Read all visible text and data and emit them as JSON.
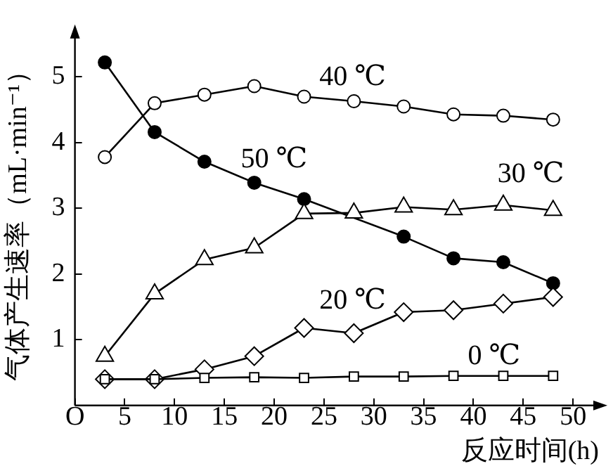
{
  "chart_data": {
    "type": "line",
    "xlabel": "反应时间(h)",
    "ylabel": "气体产生速率（mL·min⁻¹）",
    "x": [
      3,
      8,
      13,
      18,
      23,
      28,
      33,
      38,
      43,
      48
    ],
    "series": [
      {
        "name": "40 ℃",
        "color": "#000000",
        "marker": "circle",
        "values": [
          3.78,
          4.6,
          4.73,
          4.86,
          4.7,
          4.63,
          4.55,
          4.43,
          4.41,
          4.35
        ]
      },
      {
        "name": "50 ℃",
        "color": "#000000",
        "marker": "circle",
        "values": [
          5.22,
          4.16,
          3.71,
          3.39,
          3.14,
          null,
          2.57,
          2.24,
          2.18,
          1.86
        ]
      },
      {
        "name": "30 ℃",
        "color": "#000000",
        "marker": "triangle",
        "values": [
          0.75,
          1.7,
          2.22,
          2.4,
          2.92,
          2.93,
          3.02,
          2.98,
          3.05,
          2.97
        ]
      },
      {
        "name": "20 ℃",
        "color": "#000000",
        "marker": "diamond",
        "values": [
          0.4,
          0.4,
          0.55,
          0.75,
          1.18,
          1.1,
          1.42,
          1.45,
          1.55,
          1.65
        ]
      },
      {
        "name": "0 ℃",
        "color": "#000000",
        "marker": "square",
        "values": [
          0.4,
          0.4,
          0.42,
          0.43,
          0.42,
          0.44,
          0.44,
          0.45,
          0.45,
          0.45
        ]
      }
    ],
    "xlim": [
      0,
      52.6
    ],
    "ylim": [
      0,
      5.67
    ],
    "xticks": [
      {
        "value": 0,
        "label": "O"
      },
      5,
      10,
      15,
      20,
      25,
      30,
      35,
      40,
      45,
      50
    ],
    "yticks": [
      1,
      2,
      3,
      4,
      5
    ],
    "grid": false,
    "legend": false,
    "line_style": "solid"
  }
}
